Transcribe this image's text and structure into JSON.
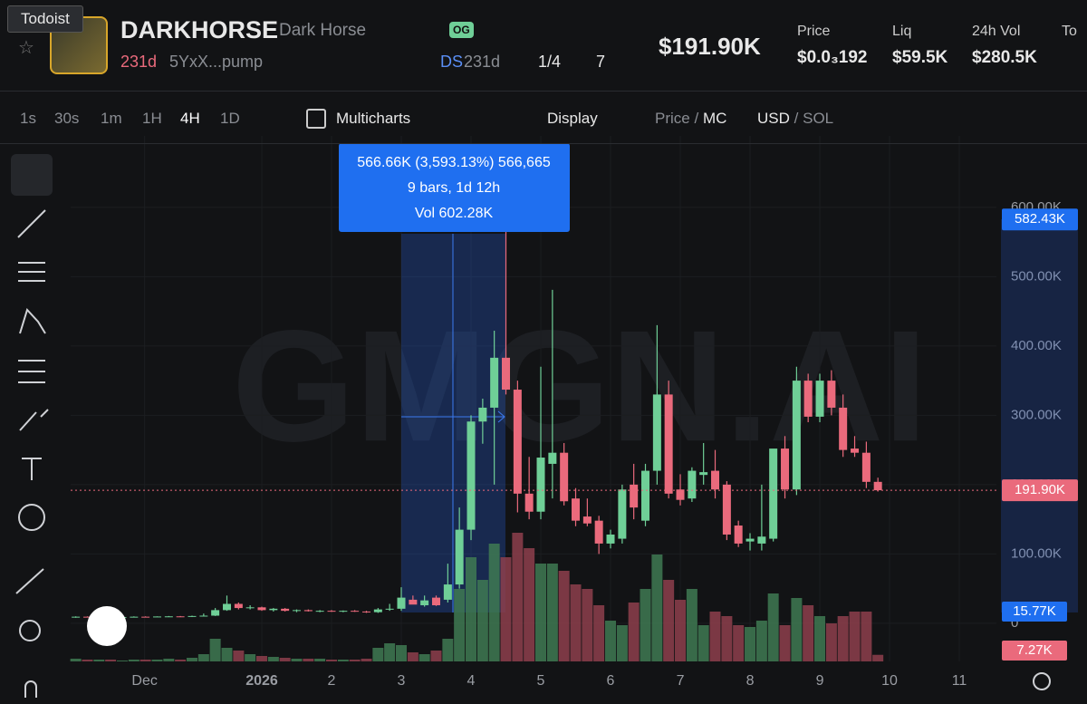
{
  "header": {
    "tooltip": "Todoist",
    "symbol": "DARKHORSE",
    "name": "Dark Horse",
    "badge": "OG",
    "age": "231d",
    "address": "5YxX...pump",
    "ds": "DS",
    "ds_age": "231d",
    "crown": "1/4",
    "watchers": "7",
    "market_cap": "$191.90K",
    "stats": [
      {
        "label": "Price",
        "value": "$0.0₃192"
      },
      {
        "label": "Liq",
        "value": "$59.5K"
      },
      {
        "label": "24h Vol",
        "value": "$280.5K"
      },
      {
        "label": "To",
        "value": ""
      }
    ]
  },
  "toolbar": {
    "intervals": [
      "1s",
      "30s",
      "1m",
      "1H",
      "4H",
      "1D"
    ],
    "active": "4H",
    "multicharts": "Multicharts",
    "display": "Display",
    "price_mc": {
      "left": "Price",
      "sep": "/",
      "right": "MC"
    },
    "usd_sol": {
      "left": "USD",
      "sep": "/",
      "right": "SOL"
    }
  },
  "chart_data": {
    "type": "candlestick",
    "watermark": "GMGN.AI",
    "x": [
      -1.667,
      -1.5,
      -1.333,
      -1.167,
      -1,
      -0.833,
      -0.667,
      -0.5,
      -0.333,
      -0.167,
      0,
      0.167,
      0.333,
      0.5,
      0.667,
      0.833,
      1,
      1.167,
      1.333,
      1.5,
      1.667,
      1.833,
      2,
      2.167,
      2.333,
      2.5,
      2.667,
      2.833,
      3,
      3.167,
      3.333,
      3.5,
      3.667,
      3.833,
      4,
      4.167,
      4.333,
      4.5,
      4.667,
      4.833,
      5,
      5.167,
      5.333,
      5.5,
      5.667,
      5.833,
      6,
      6.167,
      6.333,
      6.5,
      6.667,
      6.833,
      7,
      7.167,
      7.333,
      7.5,
      7.667,
      7.833,
      8,
      8.167,
      8.333,
      8.5,
      8.667,
      8.833,
      9,
      9.167,
      9.333,
      9.5,
      9.667,
      9.833
    ],
    "open": [
      9,
      9.5,
      9,
      9.5,
      9,
      9,
      9.5,
      9.2,
      9.8,
      10,
      9.5,
      10.5,
      11,
      19,
      28,
      22,
      23,
      19,
      21,
      18,
      19,
      17.5,
      18,
      17,
      18,
      17,
      16,
      20,
      21,
      34,
      26,
      37,
      34,
      56,
      135,
      291,
      311,
      383,
      337,
      187,
      161,
      230,
      246,
      180,
      154,
      148,
      115,
      122,
      200,
      148,
      220,
      330,
      193,
      180,
      214,
      220,
      200,
      141,
      118,
      115,
      122,
      252,
      193,
      350,
      298,
      350,
      311,
      252,
      246,
      204
    ],
    "high": [
      10,
      10,
      10,
      10,
      9.5,
      10,
      10,
      10,
      10.5,
      10.5,
      11,
      14,
      22,
      40,
      30,
      26,
      24,
      22,
      22,
      20,
      20,
      19,
      19,
      18.5,
      19,
      18,
      22,
      28,
      52,
      40,
      40,
      40,
      86,
      167,
      300,
      324,
      422,
      566.66,
      350,
      240,
      370,
      481,
      260,
      195,
      180,
      155,
      135,
      200,
      230,
      230,
      430,
      350,
      215,
      225,
      260,
      250,
      205,
      148,
      130,
      200,
      250,
      270,
      370,
      360,
      360,
      365,
      330,
      270,
      262,
      210
    ],
    "low": [
      8,
      9,
      8.5,
      9,
      8.5,
      8.5,
      9,
      9,
      9.5,
      9,
      9,
      10,
      10.5,
      18,
      20,
      20,
      18,
      17,
      17,
      16,
      17,
      16,
      16.5,
      16,
      16.5,
      15,
      15,
      18,
      18,
      28,
      24,
      25,
      30,
      50,
      120,
      259,
      200,
      330,
      160,
      150,
      150,
      180,
      170,
      140,
      140,
      100,
      108,
      115,
      150,
      140,
      200,
      180,
      170,
      175,
      200,
      180,
      120,
      110,
      105,
      105,
      118,
      180,
      185,
      290,
      290,
      300,
      240,
      240,
      195,
      190
    ],
    "close": [
      9.5,
      9,
      9.5,
      9,
      9,
      9.5,
      9.2,
      9.8,
      10,
      9.5,
      10.5,
      11,
      19,
      28,
      22,
      23,
      19,
      21,
      18,
      19,
      17.5,
      18,
      17,
      18,
      17,
      16,
      20,
      21,
      37,
      27,
      33,
      26,
      56,
      135,
      291,
      311,
      383,
      337,
      187,
      161,
      239,
      246,
      176,
      148,
      144,
      115,
      128,
      193,
      167,
      220,
      330,
      187,
      178,
      220,
      218,
      193,
      128,
      115,
      122,
      125,
      252,
      193,
      350,
      298,
      350,
      311,
      250,
      246,
      204,
      191.9
    ],
    "volume": [
      3,
      2,
      2,
      2,
      1,
      2,
      2,
      2,
      3,
      2,
      4,
      8,
      25,
      15,
      12,
      8,
      6,
      5,
      4,
      3,
      3,
      3,
      2,
      2,
      2,
      3,
      15,
      20,
      18,
      10,
      8,
      12,
      25,
      80,
      115,
      90,
      130,
      115,
      142,
      125,
      108,
      108,
      100,
      85,
      80,
      62,
      45,
      40,
      65,
      80,
      118,
      90,
      68,
      80,
      40,
      55,
      50,
      40,
      38,
      45,
      75,
      40,
      70,
      62,
      50,
      42,
      50,
      55,
      55,
      7.27
    ],
    "up_color": "#6fcf97",
    "down_color": "#ea6a7c",
    "volume_up_color": "#3f7a52",
    "volume_down_color": "#8e3f4c",
    "xlim": [
      -1.74,
      11.532
    ],
    "xticks": [
      {
        "value": -0.68,
        "label": "Dec"
      },
      {
        "value": 1,
        "label": "2026"
      },
      2,
      3,
      4,
      5,
      6,
      7,
      8,
      9,
      10,
      11
    ],
    "ylim": [
      -55,
      703
    ],
    "yticks": [
      0,
      {
        "value": 100,
        "label": "100.00K"
      },
      {
        "value": 200,
        "label": "200.00K"
      },
      {
        "value": 300,
        "label": "300.00K"
      },
      {
        "value": 400,
        "label": "400.00K"
      },
      {
        "value": 500,
        "label": "500.00K"
      },
      {
        "value": 600,
        "label": "600.00K"
      }
    ],
    "y2lim": [
      0,
      580
    ],
    "grid": true,
    "price_tags": [
      {
        "value": 582.43,
        "label": "582.43K",
        "color": "#1f6ff0"
      },
      {
        "value": 191.9,
        "label": "191.90K",
        "color": "#ea6a7c"
      }
    ],
    "volume_tags": [
      {
        "value": 15.77,
        "label": "15.77K",
        "color": "#1f6ff0"
      },
      {
        "value": 7.27,
        "label": "7.27K",
        "color": "#ea6a7c"
      }
    ],
    "measure": {
      "lines": [
        "566.66K (3,593.13%) 566,665",
        "9 bars, 1d 12h",
        "Vol 602.28K"
      ]
    }
  }
}
